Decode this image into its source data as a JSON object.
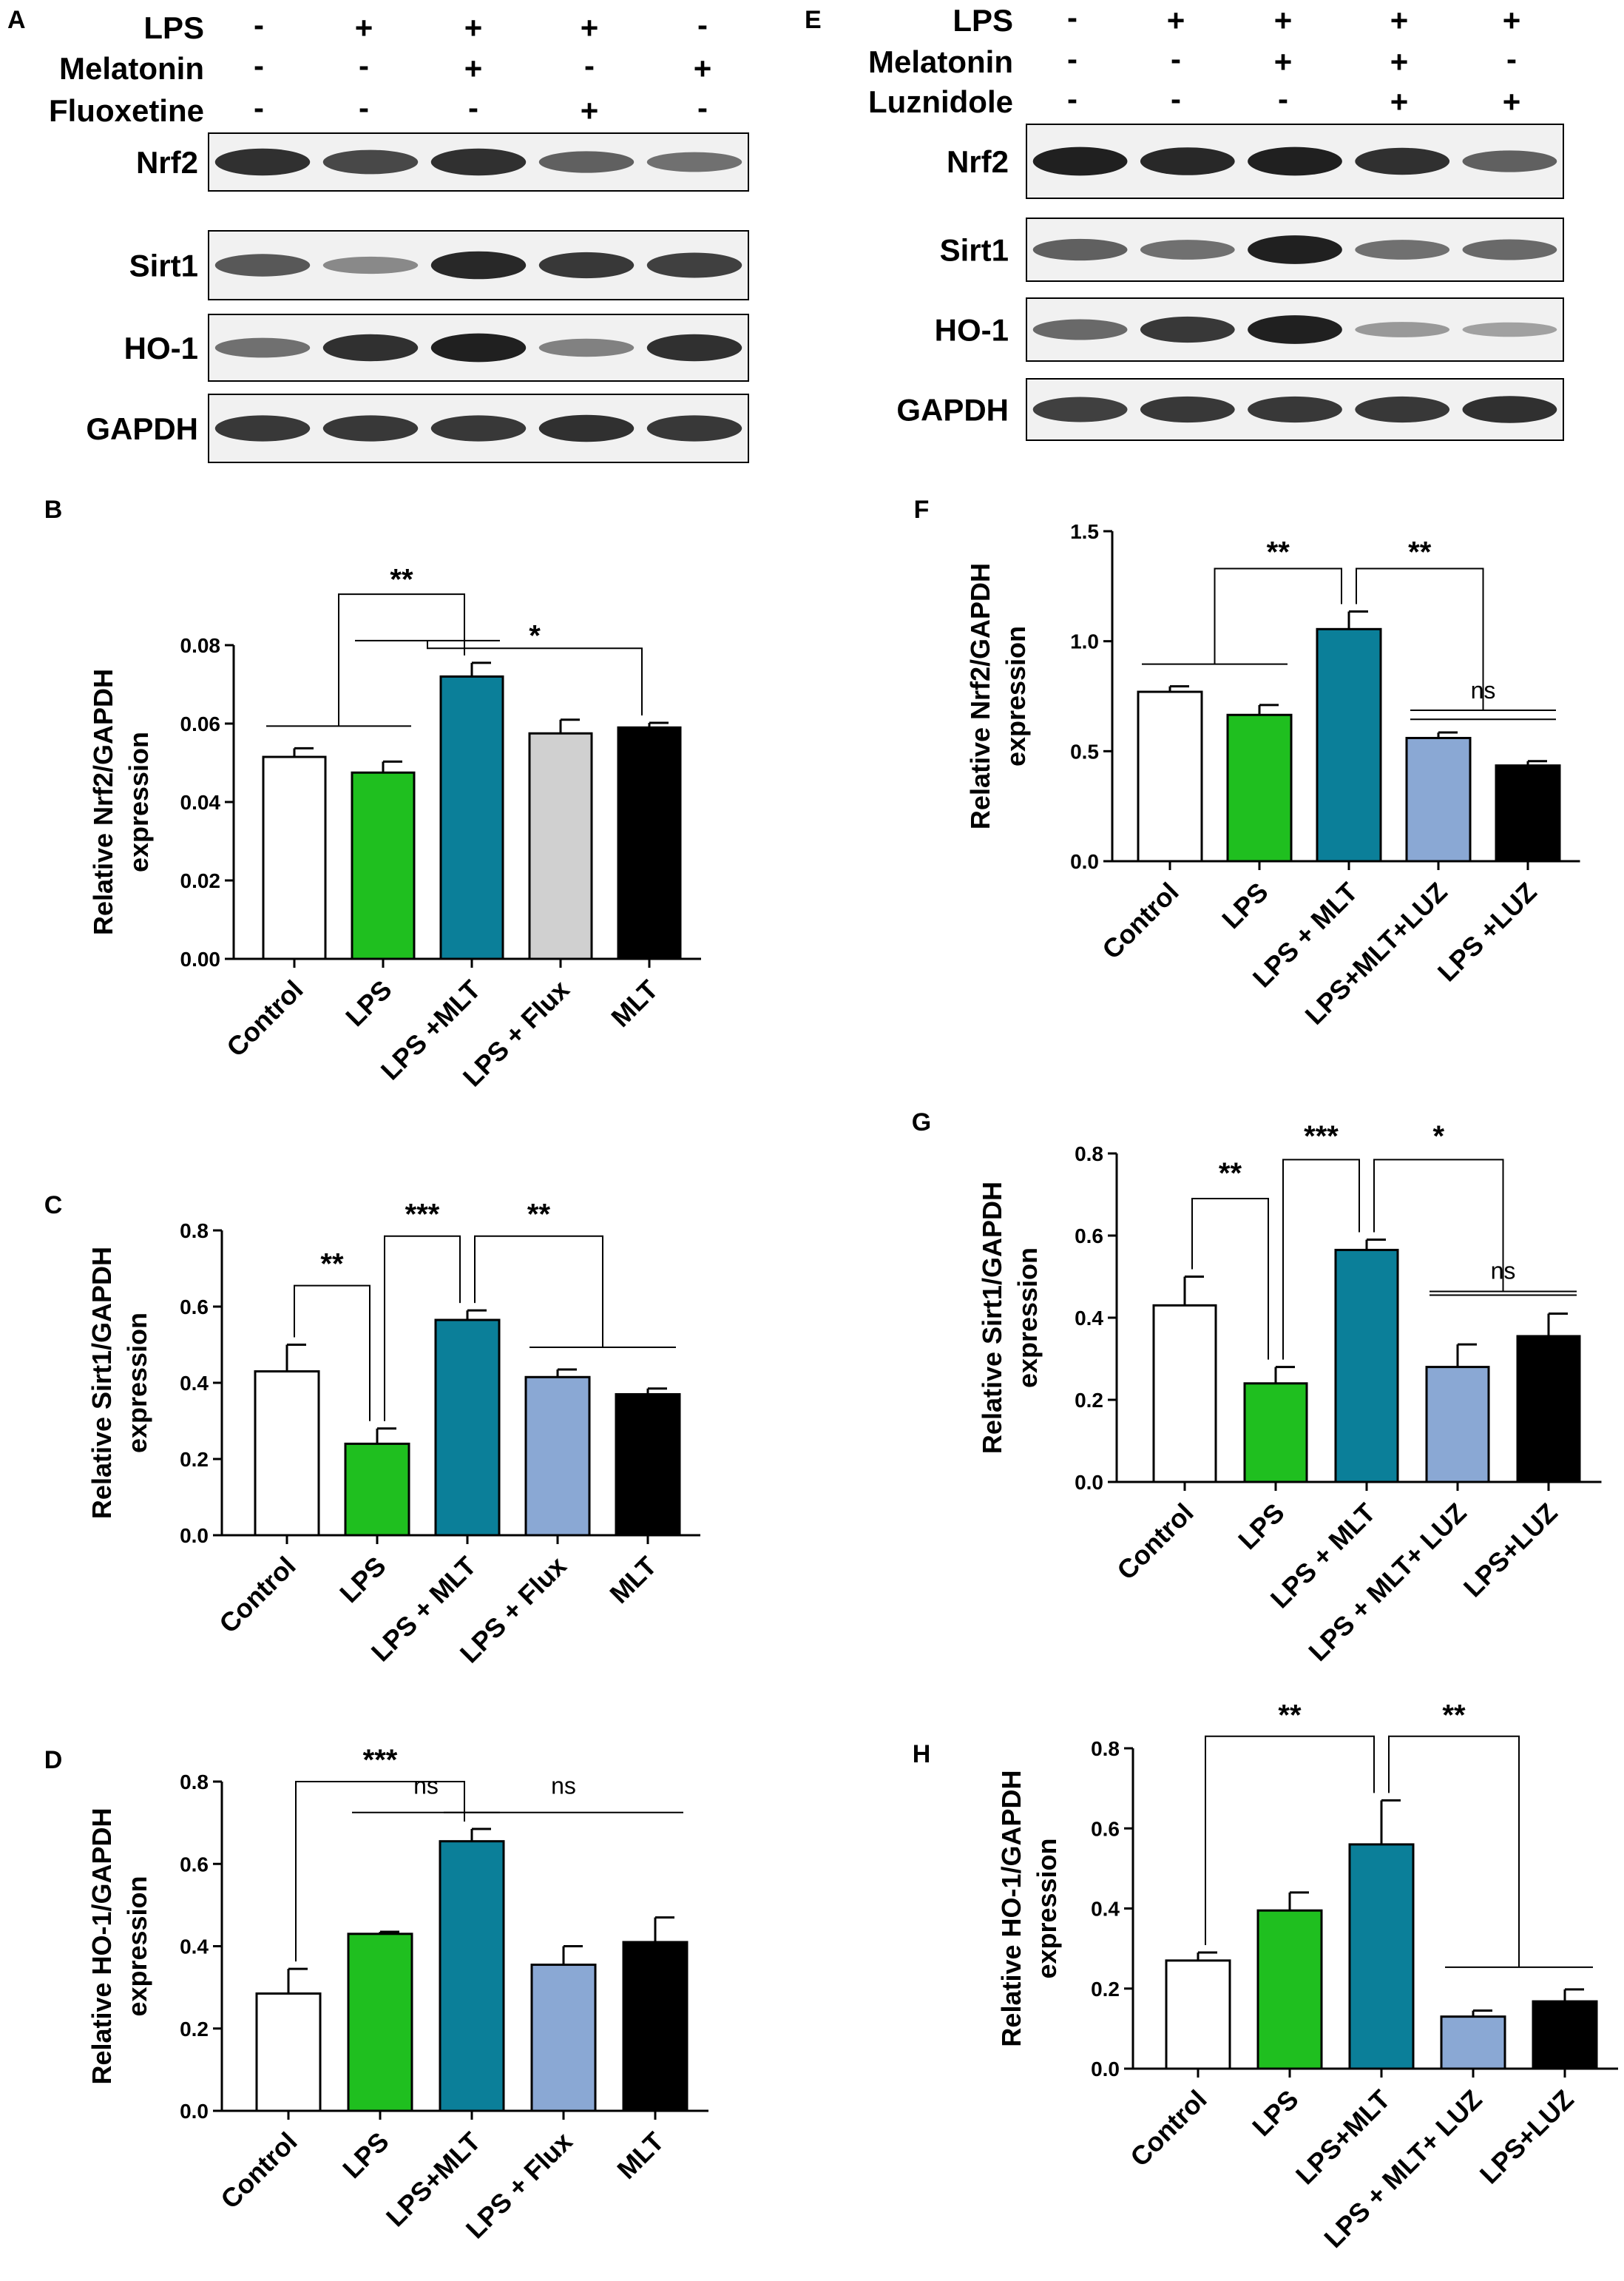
{
  "blots": [
    {
      "letter": "A",
      "conditions": [
        {
          "name": "LPS",
          "signs": [
            "-",
            "+",
            "+",
            "+",
            "-"
          ]
        },
        {
          "name": "Melatonin",
          "signs": [
            "-",
            "-",
            "+",
            "-",
            "+"
          ]
        },
        {
          "name": "Fluoxetine",
          "signs": [
            "-",
            "-",
            "-",
            "+",
            "-"
          ]
        }
      ],
      "bands": [
        {
          "label": "Nrf2",
          "intensity": [
            0.85,
            0.7,
            0.85,
            0.55,
            0.45
          ]
        },
        {
          "label": "Sirt1",
          "intensity": [
            0.6,
            0.3,
            0.9,
            0.8,
            0.75
          ]
        },
        {
          "label": "HO-1",
          "intensity": [
            0.45,
            0.85,
            0.95,
            0.35,
            0.85
          ]
        },
        {
          "label": "GAPDH",
          "intensity": [
            0.8,
            0.8,
            0.8,
            0.85,
            0.8
          ]
        }
      ]
    },
    {
      "letter": "E",
      "conditions": [
        {
          "name": "LPS",
          "signs": [
            "-",
            "+",
            "+",
            "+",
            "+"
          ]
        },
        {
          "name": "Melatonin",
          "signs": [
            "-",
            "-",
            "+",
            "+",
            "-"
          ]
        },
        {
          "name": "Luznidole",
          "signs": [
            "-",
            "-",
            "-",
            "+",
            "+"
          ]
        }
      ],
      "bands": [
        {
          "label": "Nrf2",
          "intensity": [
            0.95,
            0.9,
            0.95,
            0.85,
            0.55
          ]
        },
        {
          "label": "Sirt1",
          "intensity": [
            0.55,
            0.45,
            0.95,
            0.45,
            0.5
          ]
        },
        {
          "label": "HO-1",
          "intensity": [
            0.5,
            0.8,
            0.95,
            0.2,
            0.15
          ]
        },
        {
          "label": "GAPDH",
          "intensity": [
            0.75,
            0.8,
            0.8,
            0.8,
            0.85
          ]
        }
      ]
    }
  ],
  "chart_data": [
    {
      "letter": "B",
      "type": "bar",
      "ylabel": [
        "Relative Nrf2/GAPDH",
        "expression"
      ],
      "ylim": [
        0,
        0.08
      ],
      "yticks": [
        "0.00",
        "0.02",
        "0.04",
        "0.06",
        "0.08"
      ],
      "categories": [
        "Control",
        "LPS",
        "LPS +MLT",
        "LPS + Flux",
        "MLT"
      ],
      "values": [
        0.0515,
        0.0475,
        0.072,
        0.0575,
        0.059
      ],
      "errors": [
        0.0022,
        0.0028,
        0.0035,
        0.0035,
        0.0012
      ],
      "colors": [
        "#ffffff",
        "#1fbf1f",
        "#0b7f99",
        "#d0d0d0",
        "#000000"
      ],
      "annotations": [
        {
          "text": "**",
          "left": [
            0,
            1
          ],
          "right": [
            2
          ],
          "bracket": 0.093,
          "label": 0.0965
        },
        {
          "text": "*",
          "left": [
            1,
            2
          ],
          "right": [
            4
          ],
          "bracket": 0.0792,
          "label": 0.0822
        }
      ]
    },
    {
      "letter": "C",
      "type": "bar",
      "ylabel": [
        "Relative Sirt1/GAPDH",
        "expression"
      ],
      "ylim": [
        0,
        0.8
      ],
      "yticks": [
        "0.0",
        "0.2",
        "0.4",
        "0.6",
        "0.8"
      ],
      "categories": [
        "Control",
        "LPS",
        "LPS + MLT",
        "LPS + Flux",
        "MLT"
      ],
      "values": [
        0.43,
        0.24,
        0.565,
        0.415,
        0.37
      ],
      "errors": [
        0.07,
        0.04,
        0.025,
        0.02,
        0.015
      ],
      "colors": [
        "#ffffff",
        "#1fbf1f",
        "#0b7f99",
        "#8aa8d4",
        "#000000"
      ],
      "annotations": [
        {
          "text": "**",
          "left": [
            0
          ],
          "right": [
            1
          ],
          "bracket": 0.655,
          "label": 0.71
        },
        {
          "text": "***",
          "left": [
            1
          ],
          "right": [
            2
          ],
          "bracket": 0.785,
          "label": 0.84
        },
        {
          "text": "**",
          "left": [
            2
          ],
          "right": [
            3,
            4
          ],
          "bracket": 0.785,
          "label": 0.84
        }
      ]
    },
    {
      "letter": "D",
      "type": "bar",
      "ylabel": [
        "Relative HO-1/GAPDH",
        "expression"
      ],
      "ylim": [
        0,
        0.8
      ],
      "yticks": [
        "0.0",
        "0.2",
        "0.4",
        "0.6",
        "0.8"
      ],
      "categories": [
        "Control",
        "LPS",
        "LPS+MLT",
        "LPS + Flux",
        "MLT"
      ],
      "values": [
        0.285,
        0.43,
        0.655,
        0.355,
        0.41
      ],
      "errors": [
        0.06,
        0.005,
        0.03,
        0.045,
        0.06
      ],
      "colors": [
        "#ffffff",
        "#1fbf1f",
        "#0b7f99",
        "#8aa8d4",
        "#000000"
      ],
      "annotations": [
        {
          "text": "***",
          "left": [
            0
          ],
          "right": [
            2
          ],
          "bracket": 0.8,
          "label": 0.85
        },
        {
          "text": "ns",
          "line": [
            1,
            2
          ],
          "bracket": 0.725,
          "label": 0.77
        },
        {
          "text": "ns",
          "line": [
            2,
            4
          ],
          "bracket": 0.725,
          "label": 0.77
        }
      ]
    },
    {
      "letter": "F",
      "type": "bar",
      "ylabel": [
        "Relative Nrf2/GAPDH",
        "expression"
      ],
      "ylim": [
        0,
        1.5
      ],
      "yticks": [
        "0.0",
        "0.5",
        "1.0",
        "1.5"
      ],
      "categories": [
        "Control",
        "LPS",
        "LPS + MLT",
        "LPS+MLT+LUZ",
        "LPS +LUZ"
      ],
      "values": [
        0.77,
        0.665,
        1.055,
        0.56,
        0.435
      ],
      "errors": [
        0.025,
        0.045,
        0.08,
        0.025,
        0.02
      ],
      "colors": [
        "#ffffff",
        "#1fbf1f",
        "#0b7f99",
        "#8aa8d4",
        "#000000"
      ],
      "annotations": [
        {
          "text": "**",
          "left": [
            0,
            1
          ],
          "right": [
            2
          ],
          "bracket": 1.33,
          "label": 1.4
        },
        {
          "text": "**",
          "left": [
            2
          ],
          "right": [
            3,
            4
          ],
          "bracket": 1.33,
          "label": 1.4
        },
        {
          "text": "ns",
          "line": [
            3,
            4
          ],
          "bracket": 0.645,
          "label": 0.74
        }
      ]
    },
    {
      "letter": "G",
      "type": "bar",
      "ylabel": [
        "Relative Sirt1/GAPDH",
        "expression"
      ],
      "ylim": [
        0,
        0.8
      ],
      "yticks": [
        "0.0",
        "0.2",
        "0.4",
        "0.6",
        "0.8"
      ],
      "categories": [
        "Control",
        "LPS",
        "LPS + MLT",
        "LPS + MLT+ LUZ",
        "LPS+LUZ"
      ],
      "values": [
        0.43,
        0.24,
        0.565,
        0.28,
        0.355
      ],
      "errors": [
        0.07,
        0.04,
        0.025,
        0.055,
        0.055
      ],
      "colors": [
        "#ffffff",
        "#1fbf1f",
        "#0b7f99",
        "#8aa8d4",
        "#000000"
      ],
      "annotations": [
        {
          "text": "**",
          "left": [
            0
          ],
          "right": [
            1
          ],
          "bracket": 0.69,
          "label": 0.75
        },
        {
          "text": "***",
          "left": [
            1
          ],
          "right": [
            2
          ],
          "bracket": 0.785,
          "label": 0.84
        },
        {
          "text": "*",
          "left": [
            2
          ],
          "right": [
            3,
            4
          ],
          "bracket": 0.785,
          "label": 0.84
        },
        {
          "text": "ns",
          "line": [
            3,
            4
          ],
          "bracket": 0.455,
          "label": 0.495
        }
      ]
    },
    {
      "letter": "H",
      "type": "bar",
      "ylabel": [
        "Relative HO-1/GAPDH",
        "expression"
      ],
      "ylim": [
        0,
        0.8
      ],
      "yticks": [
        "0.0",
        "0.2",
        "0.4",
        "0.6",
        "0.8"
      ],
      "categories": [
        "Control",
        "LPS",
        "LPS+MLT",
        "LPS + MLT+ LUZ",
        "LPS+LUZ"
      ],
      "values": [
        0.27,
        0.395,
        0.56,
        0.13,
        0.168
      ],
      "errors": [
        0.02,
        0.045,
        0.11,
        0.015,
        0.03
      ],
      "colors": [
        "#ffffff",
        "#1fbf1f",
        "#0b7f99",
        "#8aa8d4",
        "#000000"
      ],
      "annotations": [
        {
          "text": "**",
          "left": [
            0
          ],
          "right": [
            2
          ],
          "bracket": 0.83,
          "label": 0.88
        },
        {
          "text": "**",
          "left": [
            2
          ],
          "right": [
            3,
            4
          ],
          "bracket": 0.83,
          "label": 0.88
        }
      ]
    }
  ]
}
